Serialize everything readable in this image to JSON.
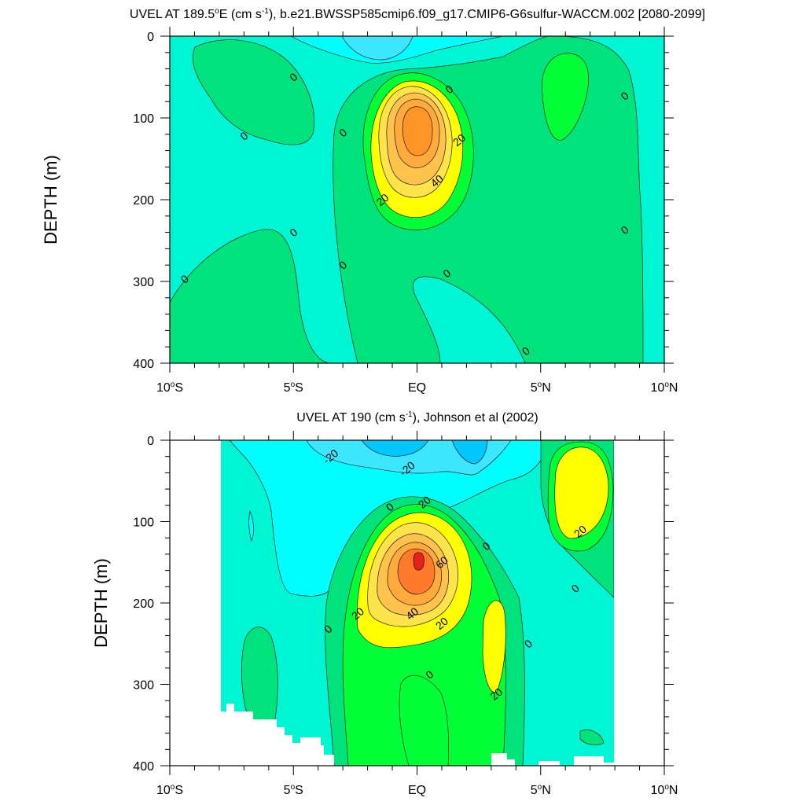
{
  "chart_data": [
    {
      "type": "contour",
      "title": "UVEL AT 189.5°E (cm s-1), b.e21.BWSSP585cmip6.f09_g17.CMIP6-G6sulfur-WACCM.002 [2080-2099]",
      "title_parts": {
        "a": "UVEL AT 189.5",
        "deg": "o",
        "b": "E (cm s",
        "sup": "-1",
        "c": "), b.e21.BWSSP585cmip6.f09_g17.CMIP6-G6sulfur-WACCM.002 [2080-2099]"
      },
      "xlabel": "",
      "ylabel": "DEPTH (m)",
      "xlim": [
        -10,
        10
      ],
      "ylim": [
        400,
        0
      ],
      "x_ticks": [
        {
          "value": -10,
          "num": "10",
          "hemi": "S"
        },
        {
          "value": -5,
          "num": "5",
          "hemi": "S"
        },
        {
          "value": 0,
          "num": "EQ",
          "hemi": ""
        },
        {
          "value": 5,
          "num": "5",
          "hemi": "N"
        },
        {
          "value": 10,
          "num": "10",
          "hemi": "N"
        }
      ],
      "y_ticks": [
        {
          "value": 0,
          "label": "0"
        },
        {
          "value": 100,
          "label": "100"
        },
        {
          "value": 200,
          "label": "200"
        },
        {
          "value": 300,
          "label": "300"
        },
        {
          "value": 400,
          "label": "400"
        }
      ],
      "core": {
        "x": 0.0,
        "depth": 130,
        "max": 45
      },
      "contour_interval": 5,
      "contour_labels": [
        {
          "text": "0",
          "x": -5.0,
          "depth": 50
        },
        {
          "text": "0",
          "x": -7.0,
          "depth": 122
        },
        {
          "text": "0",
          "x": -3.0,
          "depth": 118
        },
        {
          "text": "0",
          "x": 1.3,
          "depth": 65
        },
        {
          "text": "0",
          "x": 8.4,
          "depth": 73
        },
        {
          "text": "0",
          "x": -5.0,
          "depth": 240
        },
        {
          "text": "0",
          "x": -9.4,
          "depth": 297
        },
        {
          "text": "0",
          "x": -3.0,
          "depth": 280
        },
        {
          "text": "0",
          "x": 1.2,
          "depth": 290
        },
        {
          "text": "0",
          "x": 4.4,
          "depth": 385
        },
        {
          "text": "0",
          "x": 8.4,
          "depth": 237
        },
        {
          "text": "20",
          "x": 1.7,
          "depth": 127
        },
        {
          "text": "40",
          "x": 0.8,
          "depth": 177
        },
        {
          "text": "20",
          "x": -1.4,
          "depth": 200
        }
      ]
    },
    {
      "type": "contour",
      "title": "UVEL AT 190 (cm s-1), Johnson et al (2002)",
      "title_parts": {
        "a": "UVEL AT 190 (cm s",
        "sup": "-1",
        "c": "), Johnson et al (2002)"
      },
      "xlabel": "",
      "ylabel": "DEPTH (m)",
      "xlim": [
        -10,
        10
      ],
      "ylim": [
        400,
        0
      ],
      "x_ticks": [
        {
          "value": -10,
          "num": "10",
          "hemi": "S"
        },
        {
          "value": -5,
          "num": "5",
          "hemi": "S"
        },
        {
          "value": 0,
          "num": "EQ",
          "hemi": ""
        },
        {
          "value": 5,
          "num": "5",
          "hemi": "N"
        },
        {
          "value": 10,
          "num": "10",
          "hemi": "N"
        }
      ],
      "y_ticks": [
        {
          "value": 0,
          "label": "0"
        },
        {
          "value": 100,
          "label": "100"
        },
        {
          "value": 200,
          "label": "200"
        },
        {
          "value": 300,
          "label": "300"
        },
        {
          "value": 400,
          "label": "400"
        }
      ],
      "data_x_range": [
        -8,
        8
      ],
      "core": {
        "x": 0.0,
        "depth": 150,
        "max": 70
      },
      "contour_interval": 10,
      "contour_labels": [
        {
          "text": "-20",
          "x": -3.5,
          "depth": 20
        },
        {
          "text": "-20",
          "x": -0.4,
          "depth": 35
        },
        {
          "text": "20",
          "x": 0.3,
          "depth": 76
        },
        {
          "text": "0",
          "x": -1.1,
          "depth": 82
        },
        {
          "text": "60",
          "x": 1.0,
          "depth": 150
        },
        {
          "text": "0",
          "x": 2.8,
          "depth": 130
        },
        {
          "text": "20",
          "x": 6.6,
          "depth": 112
        },
        {
          "text": "0",
          "x": 6.4,
          "depth": 182
        },
        {
          "text": "20",
          "x": -2.4,
          "depth": 213
        },
        {
          "text": "40",
          "x": -0.2,
          "depth": 213
        },
        {
          "text": "20",
          "x": 1.0,
          "depth": 225
        },
        {
          "text": "0",
          "x": -3.6,
          "depth": 232
        },
        {
          "text": "0",
          "x": 4.5,
          "depth": 250
        },
        {
          "text": "0",
          "x": 0.5,
          "depth": 288
        },
        {
          "text": "20",
          "x": 3.2,
          "depth": 312
        }
      ]
    }
  ]
}
